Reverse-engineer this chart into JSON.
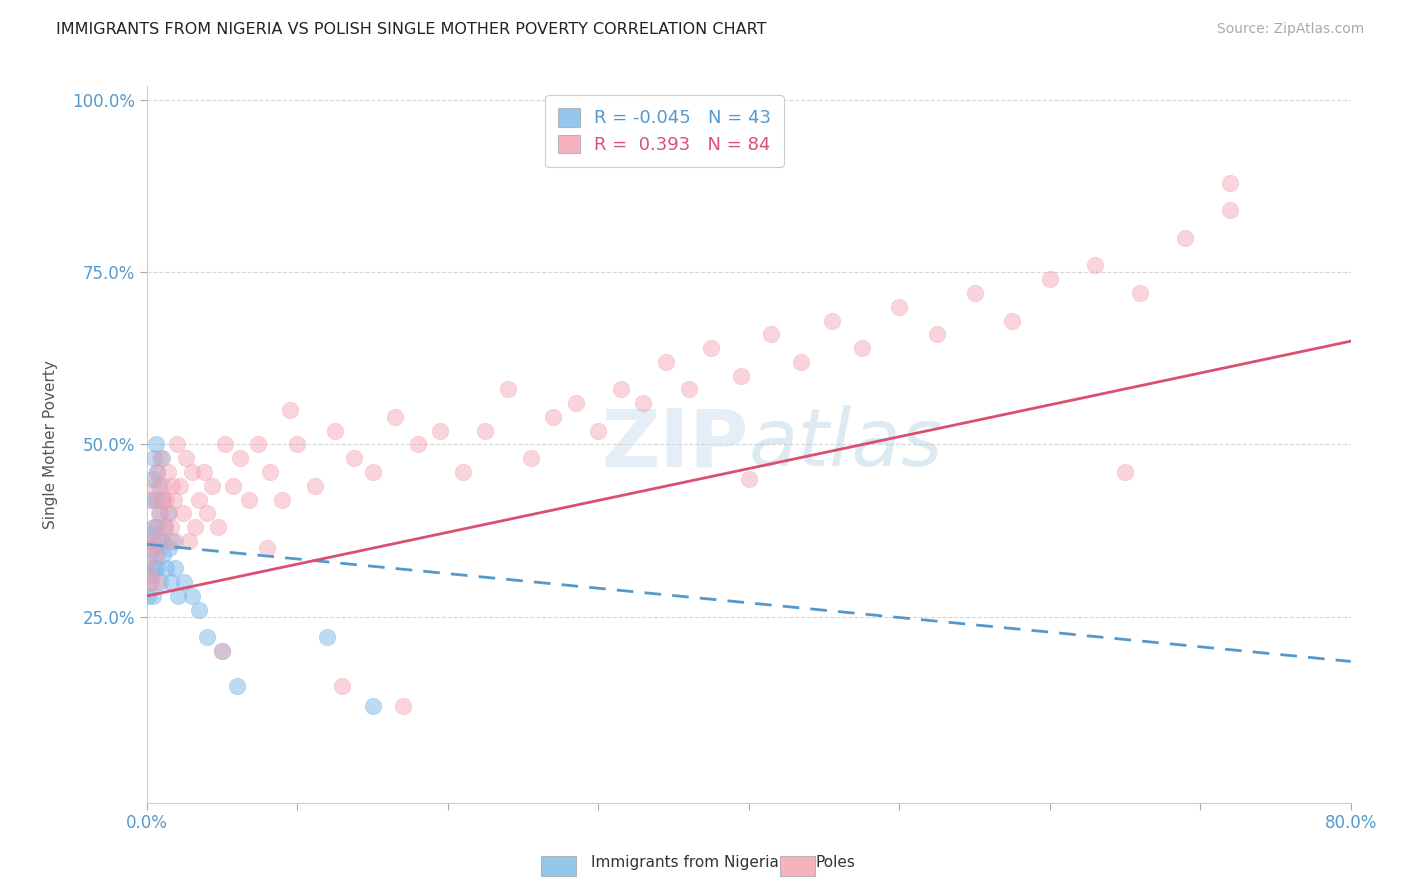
{
  "title": "IMMIGRANTS FROM NIGERIA VS POLISH SINGLE MOTHER POVERTY CORRELATION CHART",
  "source": "Source: ZipAtlas.com",
  "ylabel": "Single Mother Poverty",
  "legend_blue_label": "Immigrants from Nigeria",
  "legend_pink_label": "Poles",
  "R_blue": -0.045,
  "N_blue": 43,
  "R_pink": 0.393,
  "N_pink": 84,
  "blue_color": "#7bb8e8",
  "pink_color": "#f4a0b0",
  "xmin": 0.0,
  "xmax": 0.8,
  "ymin": -0.02,
  "ymax": 1.02,
  "blue_trend_x": [
    0.0,
    0.8
  ],
  "blue_trend_y": [
    0.355,
    0.185
  ],
  "pink_trend_x": [
    0.0,
    0.8
  ],
  "pink_trend_y": [
    0.28,
    0.65
  ],
  "blue_scatter_x": [
    0.001,
    0.001,
    0.002,
    0.002,
    0.003,
    0.003,
    0.003,
    0.004,
    0.004,
    0.004,
    0.005,
    0.005,
    0.005,
    0.006,
    0.006,
    0.006,
    0.007,
    0.007,
    0.007,
    0.008,
    0.008,
    0.009,
    0.009,
    0.01,
    0.01,
    0.011,
    0.011,
    0.012,
    0.013,
    0.014,
    0.015,
    0.016,
    0.017,
    0.019,
    0.021,
    0.025,
    0.03,
    0.035,
    0.04,
    0.05,
    0.06,
    0.12,
    0.15
  ],
  "blue_scatter_y": [
    0.33,
    0.28,
    0.36,
    0.3,
    0.42,
    0.37,
    0.31,
    0.45,
    0.35,
    0.28,
    0.48,
    0.38,
    0.32,
    0.5,
    0.42,
    0.34,
    0.46,
    0.38,
    0.32,
    0.44,
    0.36,
    0.4,
    0.3,
    0.48,
    0.36,
    0.42,
    0.34,
    0.38,
    0.32,
    0.4,
    0.35,
    0.3,
    0.36,
    0.32,
    0.28,
    0.3,
    0.28,
    0.26,
    0.22,
    0.2,
    0.15,
    0.22,
    0.12
  ],
  "pink_scatter_x": [
    0.001,
    0.002,
    0.003,
    0.003,
    0.004,
    0.005,
    0.005,
    0.006,
    0.007,
    0.007,
    0.008,
    0.009,
    0.01,
    0.01,
    0.011,
    0.012,
    0.013,
    0.014,
    0.015,
    0.016,
    0.017,
    0.018,
    0.019,
    0.02,
    0.022,
    0.024,
    0.026,
    0.028,
    0.03,
    0.032,
    0.035,
    0.038,
    0.04,
    0.043,
    0.047,
    0.052,
    0.057,
    0.062,
    0.068,
    0.074,
    0.082,
    0.09,
    0.1,
    0.112,
    0.125,
    0.138,
    0.15,
    0.165,
    0.18,
    0.195,
    0.21,
    0.225,
    0.24,
    0.255,
    0.27,
    0.285,
    0.3,
    0.315,
    0.33,
    0.345,
    0.36,
    0.375,
    0.395,
    0.415,
    0.435,
    0.455,
    0.475,
    0.5,
    0.525,
    0.55,
    0.575,
    0.6,
    0.63,
    0.66,
    0.69,
    0.72,
    0.05,
    0.08,
    0.13,
    0.4,
    0.65,
    0.72,
    0.095,
    0.17
  ],
  "pink_scatter_y": [
    0.32,
    0.35,
    0.3,
    0.42,
    0.36,
    0.38,
    0.44,
    0.3,
    0.46,
    0.34,
    0.4,
    0.48,
    0.36,
    0.42,
    0.44,
    0.38,
    0.42,
    0.46,
    0.4,
    0.38,
    0.44,
    0.42,
    0.36,
    0.5,
    0.44,
    0.4,
    0.48,
    0.36,
    0.46,
    0.38,
    0.42,
    0.46,
    0.4,
    0.44,
    0.38,
    0.5,
    0.44,
    0.48,
    0.42,
    0.5,
    0.46,
    0.42,
    0.5,
    0.44,
    0.52,
    0.48,
    0.46,
    0.54,
    0.5,
    0.52,
    0.46,
    0.52,
    0.58,
    0.48,
    0.54,
    0.56,
    0.52,
    0.58,
    0.56,
    0.62,
    0.58,
    0.64,
    0.6,
    0.66,
    0.62,
    0.68,
    0.64,
    0.7,
    0.66,
    0.72,
    0.68,
    0.74,
    0.76,
    0.72,
    0.8,
    0.84,
    0.2,
    0.35,
    0.15,
    0.45,
    0.46,
    0.88,
    0.55,
    0.12
  ]
}
